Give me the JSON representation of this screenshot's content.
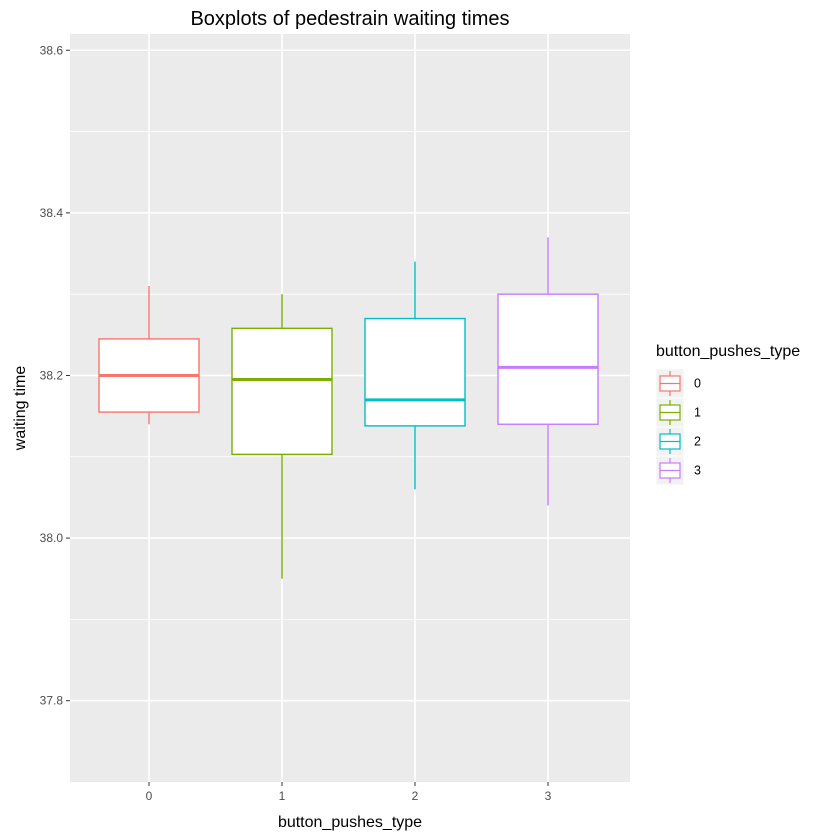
{
  "chart_data": {
    "type": "boxplot",
    "title": "Boxplots of pedestrain waiting times",
    "xlabel": "button_pushes_type",
    "ylabel": "waiting time",
    "categories": [
      "0",
      "1",
      "2",
      "3"
    ],
    "ylim": [
      37.7,
      38.62
    ],
    "yticks": [
      37.8,
      38.0,
      38.2,
      38.4,
      38.6
    ],
    "ytick_labels": [
      "37.8",
      "38.0",
      "38.2",
      "38.4",
      "38.6"
    ],
    "grid": true,
    "legend": {
      "title": "button_pushes_type",
      "position": "right",
      "entries": [
        "0",
        "1",
        "2",
        "3"
      ]
    },
    "series": [
      {
        "category": "0",
        "color": "#F8766D",
        "whisker_low": 38.14,
        "q1": 38.155,
        "median": 38.2,
        "q3": 38.245,
        "whisker_high": 38.31
      },
      {
        "category": "1",
        "color": "#7CAE00",
        "whisker_low": 37.95,
        "q1": 38.103,
        "median": 38.195,
        "q3": 38.258,
        "whisker_high": 38.3
      },
      {
        "category": "2",
        "color": "#00BFC4",
        "whisker_low": 38.06,
        "q1": 38.138,
        "median": 38.17,
        "q3": 38.27,
        "whisker_high": 38.34
      },
      {
        "category": "3",
        "color": "#C77CFF",
        "whisker_low": 38.04,
        "q1": 38.14,
        "median": 38.21,
        "q3": 38.3,
        "whisker_high": 38.37
      }
    ]
  }
}
